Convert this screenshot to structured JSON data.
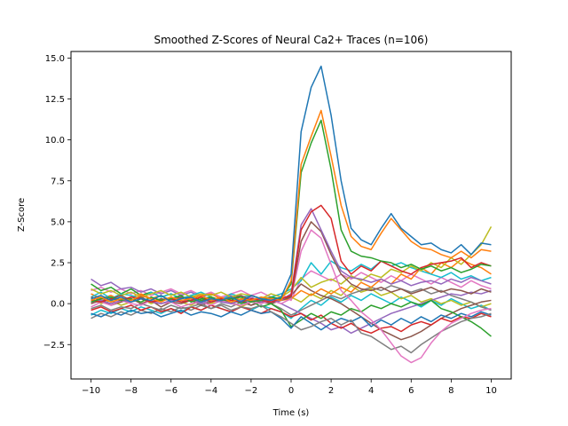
{
  "chart_data": {
    "type": "line",
    "title": "Smoothed Z-Scores of Neural Ca2+ Traces (n=106)",
    "xlabel": "Time (s)",
    "ylabel": "Z-Score",
    "xlim": [
      -11,
      11
    ],
    "ylim": [
      -4.6,
      15.4
    ],
    "x_ticks": [
      -10,
      -8,
      -6,
      -4,
      -2,
      0,
      2,
      4,
      6,
      8,
      10
    ],
    "x_tick_labels": [
      "−10",
      "−8",
      "−6",
      "−4",
      "−2",
      "0",
      "2",
      "4",
      "6",
      "8",
      "10"
    ],
    "y_ticks": [
      -2.5,
      0.0,
      2.5,
      5.0,
      7.5,
      10.0,
      12.5,
      15.0
    ],
    "y_tick_labels": [
      "−2.5",
      "0.0",
      "2.5",
      "5.0",
      "7.5",
      "10.0",
      "12.5",
      "15.0"
    ],
    "grid": false,
    "legend": "none",
    "n_traces": 106,
    "x": [
      -10,
      -9.5,
      -9,
      -8.5,
      -8,
      -7.5,
      -7,
      -6.5,
      -6,
      -5.5,
      -5,
      -4.5,
      -4,
      -3.5,
      -3,
      -2.5,
      -2,
      -1.5,
      -1,
      -0.5,
      0,
      0.5,
      1,
      1.5,
      2,
      2.5,
      3,
      3.5,
      4,
      4.5,
      5,
      5.5,
      6,
      6.5,
      7,
      7.5,
      8,
      8.5,
      9,
      9.5,
      10
    ],
    "series": [
      {
        "color": "#1f77b4",
        "values": [
          0.3,
          0.5,
          0.2,
          0.4,
          0.1,
          0.3,
          0.2,
          0.5,
          0.1,
          0.3,
          0.4,
          0.1,
          0.3,
          0.2,
          0.4,
          0.1,
          0.5,
          0.3,
          0.2,
          0.4,
          1.8,
          10.5,
          13.2,
          14.5,
          11.5,
          7.5,
          4.6,
          3.9,
          3.6,
          4.6,
          5.5,
          4.6,
          4.1,
          3.6,
          3.7,
          3.3,
          3.1,
          3.6,
          3.0,
          3.7,
          3.6
        ]
      },
      {
        "color": "#ff7f0e",
        "values": [
          0.2,
          0.4,
          0.1,
          0.3,
          0.2,
          0.5,
          0.3,
          0.1,
          0.4,
          0.2,
          0.3,
          0.5,
          0.2,
          0.4,
          0.1,
          0.3,
          0.2,
          0.4,
          0.3,
          0.2,
          1.4,
          8.5,
          10.2,
          11.8,
          9.0,
          6.0,
          4.1,
          3.5,
          3.3,
          4.3,
          5.2,
          4.5,
          3.8,
          3.4,
          3.3,
          3.0,
          2.8,
          3.2,
          2.8,
          3.3,
          3.2
        ]
      },
      {
        "color": "#2ca02c",
        "values": [
          0.1,
          0.3,
          0.4,
          0.2,
          0.3,
          0.1,
          0.4,
          0.2,
          0.3,
          0.5,
          0.1,
          0.3,
          0.4,
          0.2,
          0.3,
          0.4,
          0.1,
          0.2,
          0.4,
          0.3,
          1.2,
          8.0,
          9.8,
          11.2,
          8.2,
          4.5,
          3.2,
          2.9,
          2.8,
          2.6,
          2.5,
          2.2,
          2.4,
          2.1,
          2.3,
          2.0,
          2.2,
          1.9,
          2.1,
          2.4,
          2.3
        ]
      },
      {
        "color": "#d62728",
        "values": [
          0.2,
          0.1,
          0.3,
          0.2,
          0.4,
          0.3,
          0.1,
          0.2,
          0.3,
          0.1,
          0.2,
          0.4,
          0.1,
          0.3,
          0.2,
          0.1,
          0.3,
          0.2,
          0.1,
          0.3,
          0.5,
          4.5,
          5.6,
          6.0,
          5.2,
          2.6,
          1.8,
          2.3,
          2.0,
          2.6,
          2.3,
          2.0,
          1.8,
          2.2,
          2.4,
          2.5,
          2.6,
          2.8,
          2.2,
          2.5,
          2.3
        ]
      },
      {
        "color": "#9467bd",
        "values": [
          0.1,
          0.2,
          0.0,
          0.2,
          0.1,
          0.3,
          0.1,
          0.0,
          0.2,
          0.1,
          0.3,
          0.0,
          0.2,
          0.1,
          0.0,
          0.2,
          0.1,
          0.3,
          0.1,
          0.2,
          0.6,
          4.8,
          5.8,
          4.5,
          3.2,
          2.0,
          1.6,
          1.5,
          1.3,
          1.5,
          1.2,
          1.4,
          1.1,
          1.3,
          1.4,
          1.2,
          1.5,
          1.3,
          1.6,
          1.4,
          1.2
        ]
      },
      {
        "color": "#8c564b",
        "values": [
          0.4,
          0.2,
          0.3,
          0.5,
          0.2,
          0.4,
          0.1,
          0.3,
          0.2,
          0.4,
          0.3,
          0.1,
          0.4,
          0.2,
          0.3,
          0.5,
          0.2,
          0.3,
          0.1,
          0.2,
          0.4,
          3.8,
          5.0,
          4.4,
          3.0,
          1.8,
          1.2,
          0.9,
          0.8,
          1.0,
          0.7,
          0.9,
          0.6,
          0.8,
          1.0,
          0.7,
          0.9,
          0.8,
          0.6,
          0.9,
          0.7
        ]
      },
      {
        "color": "#e377c2",
        "values": [
          -0.2,
          0.1,
          -0.1,
          0.2,
          0.0,
          -0.1,
          0.2,
          0.0,
          0.1,
          -0.2,
          0.0,
          0.1,
          -0.1,
          0.2,
          0.0,
          -0.1,
          0.1,
          0.0,
          0.2,
          0.0,
          0.3,
          3.2,
          4.5,
          4.0,
          2.4,
          0.8,
          0.2,
          -0.5,
          -1.0,
          -1.6,
          -2.4,
          -3.2,
          -3.6,
          -3.3,
          -2.4,
          -1.7,
          -1.2,
          -0.9,
          -0.6,
          -0.4,
          -0.3
        ]
      },
      {
        "color": "#7f7f7f",
        "values": [
          -0.3,
          -0.1,
          -0.4,
          -0.2,
          -0.3,
          0.0,
          -0.2,
          -0.4,
          -0.1,
          -0.3,
          -0.2,
          0.0,
          -0.3,
          -0.1,
          -0.4,
          -0.2,
          -0.3,
          -0.1,
          -0.5,
          -0.8,
          -1.2,
          -1.6,
          -1.4,
          -1.1,
          -0.9,
          -1.3,
          -1.0,
          -1.8,
          -2.0,
          -2.4,
          -2.8,
          -2.6,
          -3.0,
          -2.5,
          -2.1,
          -1.7,
          -1.4,
          -1.1,
          -0.9,
          -0.8,
          -0.6
        ]
      },
      {
        "color": "#bcbd22",
        "values": [
          0.9,
          0.6,
          0.8,
          0.5,
          0.7,
          0.4,
          0.6,
          0.8,
          0.5,
          0.7,
          0.4,
          0.6,
          0.5,
          0.7,
          0.4,
          0.6,
          0.5,
          0.3,
          0.6,
          0.4,
          0.8,
          1.6,
          1.0,
          1.3,
          1.5,
          1.2,
          1.7,
          1.4,
          1.8,
          1.6,
          2.1,
          1.9,
          2.3,
          2.0,
          2.5,
          2.2,
          2.8,
          2.4,
          3.0,
          3.6,
          4.7
        ]
      },
      {
        "color": "#17becf",
        "values": [
          0.4,
          0.7,
          0.3,
          0.6,
          0.5,
          0.3,
          0.7,
          0.4,
          0.6,
          0.3,
          0.5,
          0.7,
          0.4,
          0.2,
          0.6,
          0.4,
          0.5,
          0.3,
          0.4,
          0.6,
          0.9,
          1.4,
          2.5,
          1.8,
          2.6,
          2.2,
          2.0,
          2.4,
          2.1,
          2.6,
          2.3,
          2.5,
          2.2,
          2.0,
          1.8,
          1.6,
          1.9,
          1.5,
          1.7,
          1.4,
          1.6
        ]
      },
      {
        "color": "#1f77b4",
        "values": [
          -0.6,
          -0.8,
          -0.5,
          -0.7,
          -0.4,
          -0.6,
          -0.5,
          -0.8,
          -0.6,
          -0.4,
          -0.7,
          -0.5,
          -0.6,
          -0.8,
          -0.5,
          -0.7,
          -0.4,
          -0.6,
          -0.5,
          -0.9,
          -1.5,
          -0.8,
          -1.2,
          -1.6,
          -1.2,
          -0.9,
          -1.1,
          -0.8,
          -1.4,
          -1.0,
          -1.3,
          -0.9,
          -1.2,
          -0.8,
          -1.1,
          -0.7,
          -0.9,
          -0.6,
          -0.8,
          -0.5,
          -0.7
        ]
      },
      {
        "color": "#ff7f0e",
        "values": [
          0.6,
          0.3,
          0.5,
          0.2,
          0.4,
          0.6,
          0.3,
          0.5,
          0.2,
          0.4,
          0.3,
          0.5,
          0.6,
          0.3,
          0.4,
          0.2,
          0.5,
          0.3,
          0.4,
          0.2,
          0.3,
          0.8,
          0.5,
          0.9,
          0.6,
          1.0,
          0.7,
          1.3,
          1.0,
          1.5,
          1.2,
          1.8,
          1.5,
          2.2,
          1.8,
          2.5,
          2.2,
          2.7,
          2.4,
          2.2,
          1.8
        ]
      },
      {
        "color": "#2ca02c",
        "values": [
          1.2,
          0.8,
          1.0,
          0.6,
          0.9,
          0.5,
          0.7,
          0.4,
          0.6,
          0.3,
          0.5,
          0.2,
          0.4,
          0.1,
          0.3,
          0.0,
          0.2,
          -0.2,
          0.0,
          -0.4,
          -1.4,
          -1.0,
          -0.6,
          -0.9,
          -0.5,
          -0.7,
          -0.3,
          -0.5,
          -0.1,
          -0.3,
          0.0,
          -0.2,
          0.1,
          -0.1,
          0.2,
          -0.3,
          -0.5,
          -0.8,
          -1.1,
          -1.5,
          -2.0
        ]
      },
      {
        "color": "#d62728",
        "values": [
          -0.4,
          -0.2,
          -0.5,
          -0.3,
          -0.1,
          -0.4,
          -0.2,
          -0.5,
          -0.3,
          -0.6,
          -0.2,
          -0.4,
          -0.1,
          -0.3,
          -0.5,
          -0.2,
          -0.4,
          -0.6,
          -0.3,
          -0.5,
          -0.8,
          -0.6,
          -1.0,
          -0.7,
          -1.2,
          -1.5,
          -1.2,
          -1.6,
          -1.8,
          -1.5,
          -1.4,
          -1.7,
          -1.3,
          -1.1,
          -1.3,
          -0.9,
          -1.1,
          -0.8,
          -0.9,
          -0.6,
          -0.8
        ]
      },
      {
        "color": "#9467bd",
        "values": [
          1.5,
          1.1,
          1.3,
          0.9,
          1.0,
          0.7,
          0.9,
          0.6,
          0.8,
          0.5,
          0.7,
          0.4,
          0.6,
          0.3,
          0.5,
          0.2,
          0.4,
          0.1,
          0.3,
          0.0,
          -0.3,
          -0.6,
          -0.9,
          -1.2,
          -1.6,
          -1.4,
          -1.8,
          -1.5,
          -1.2,
          -0.9,
          -0.6,
          -0.4,
          -0.2,
          0.0,
          0.2,
          0.4,
          0.6,
          0.5,
          0.7,
          0.6,
          0.8
        ]
      },
      {
        "color": "#8c564b",
        "values": [
          0.0,
          0.2,
          -0.1,
          0.1,
          0.3,
          0.0,
          0.2,
          -0.2,
          0.1,
          0.0,
          0.2,
          -0.1,
          0.1,
          0.3,
          0.0,
          0.2,
          -0.1,
          0.1,
          0.0,
          0.2,
          0.5,
          1.2,
          0.8,
          0.5,
          0.3,
          0.0,
          -0.4,
          -0.8,
          -1.2,
          -1.6,
          -1.9,
          -2.2,
          -2.0,
          -1.7,
          -1.3,
          -0.9,
          -0.6,
          -0.3,
          -0.1,
          0.1,
          0.2
        ]
      },
      {
        "color": "#e377c2",
        "values": [
          0.8,
          1.0,
          0.7,
          0.9,
          0.6,
          0.8,
          0.5,
          0.7,
          0.9,
          0.6,
          0.8,
          0.5,
          0.7,
          0.4,
          0.6,
          0.8,
          0.5,
          0.7,
          0.4,
          0.6,
          0.2,
          1.5,
          2.0,
          1.7,
          1.4,
          1.8,
          1.5,
          1.9,
          1.6,
          1.3,
          1.7,
          1.4,
          1.8,
          1.5,
          1.2,
          1.6,
          1.3,
          1.0,
          1.4,
          1.1,
          0.9
        ]
      },
      {
        "color": "#7f7f7f",
        "values": [
          -0.9,
          -0.6,
          -0.8,
          -0.5,
          -0.7,
          -0.4,
          -0.6,
          -0.3,
          -0.5,
          -0.2,
          -0.4,
          -0.1,
          -0.3,
          0.0,
          -0.2,
          0.1,
          -0.1,
          0.2,
          0.0,
          -0.3,
          -0.7,
          -0.4,
          -0.1,
          0.2,
          0.5,
          0.3,
          0.6,
          0.8,
          1.0,
          0.8,
          1.1,
          0.9,
          0.7,
          0.9,
          0.6,
          0.8,
          0.5,
          0.3,
          0.1,
          -0.2,
          -0.4
        ]
      },
      {
        "color": "#bcbd22",
        "values": [
          0.3,
          0.0,
          0.2,
          -0.1,
          0.1,
          0.3,
          0.0,
          0.2,
          0.4,
          0.1,
          -0.1,
          0.2,
          0.0,
          0.3,
          0.1,
          -0.2,
          0.1,
          0.3,
          0.0,
          0.2,
          0.4,
          0.1,
          0.6,
          0.3,
          0.8,
          0.5,
          1.1,
          0.7,
          0.9,
          0.5,
          0.7,
          0.3,
          0.5,
          0.1,
          0.3,
          0.0,
          0.2,
          -0.1,
          0.1,
          -0.2,
          0.0
        ]
      },
      {
        "color": "#17becf",
        "values": [
          -0.7,
          -0.4,
          -0.6,
          -0.3,
          -0.5,
          -0.2,
          -0.4,
          -0.6,
          -0.3,
          -0.5,
          -0.2,
          -0.4,
          -0.1,
          -0.3,
          -0.5,
          -0.2,
          -0.4,
          -0.1,
          -0.3,
          -0.5,
          -0.9,
          -0.3,
          0.2,
          -0.1,
          0.4,
          0.1,
          0.5,
          0.2,
          0.6,
          0.3,
          0.0,
          0.4,
          0.1,
          -0.2,
          0.2,
          -0.1,
          0.3,
          0.0,
          -0.3,
          -0.1,
          -0.4
        ]
      }
    ]
  }
}
